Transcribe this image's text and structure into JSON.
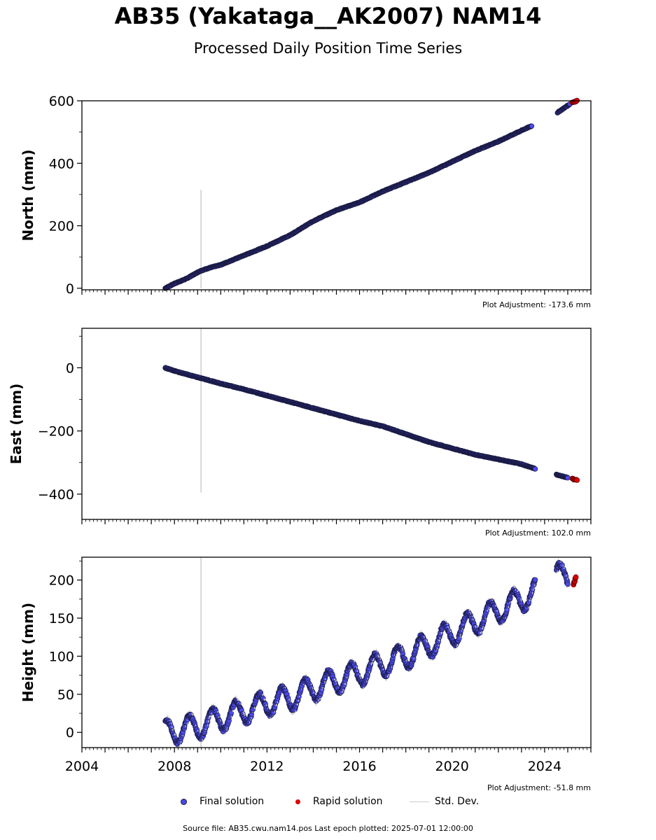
{
  "title": "AB35 (Yakataga__AK2007) NAM14",
  "subtitle": "Processed Daily Position Time Series",
  "legend": {
    "final": "Final solution",
    "rapid": "Rapid solution",
    "std": "Std. Dev."
  },
  "source": "Source file: AB35.cwu.nam14.pos  Last epoch plotted: 2025-07-01 12:00:00",
  "colors": {
    "final": "#4a4ae8",
    "final_edge": "#1a1a40",
    "rapid": "#dd0000",
    "std": "#cccccc"
  },
  "chart_data": [
    {
      "type": "scatter",
      "ylabel": "North (mm)",
      "adjustment": "Plot Adjustment: -173.6 mm",
      "xlim": [
        2004.0,
        2026.0
      ],
      "ylim": [
        -5,
        600
      ],
      "yticks": [
        0,
        200,
        400,
        600
      ],
      "xticks": [],
      "gap": [
        2023.45,
        2024.55
      ],
      "outlier": {
        "x": 2009.15,
        "y_low": 0,
        "y_high": 315
      },
      "final": {
        "x": [
          2007.6,
          2008.0,
          2008.5,
          2009.1,
          2009.5,
          2010.0,
          2011.0,
          2012.0,
          2013.0,
          2014.0,
          2015.0,
          2016.0,
          2017.0,
          2018.0,
          2019.0,
          2020.0,
          2021.0,
          2022.0,
          2023.0,
          2023.45,
          2024.55,
          2025.1
        ],
        "y": [
          0,
          15,
          30,
          55,
          65,
          75,
          105,
          135,
          170,
          215,
          250,
          275,
          310,
          340,
          370,
          405,
          440,
          470,
          505,
          520,
          562,
          590
        ]
      },
      "rapid": {
        "x": [
          2025.2,
          2025.4
        ],
        "y": [
          595,
          600
        ]
      }
    },
    {
      "type": "scatter",
      "ylabel": "East (mm)",
      "adjustment": "Plot Adjustment: 102.0 mm",
      "xlim": [
        2004.0,
        2026.0
      ],
      "ylim": [
        -480,
        125
      ],
      "yticks": [
        -400,
        -200,
        0
      ],
      "ytick_labels": [
        "−400",
        "−200",
        "0"
      ],
      "xticks": [],
      "gap": [
        2023.6,
        2024.5
      ],
      "outlier": {
        "x": 2009.15,
        "y_low": -395,
        "y_high": 125
      },
      "final": {
        "x": [
          2007.6,
          2008.0,
          2009.0,
          2010.0,
          2011.0,
          2012.0,
          2013.0,
          2014.0,
          2015.0,
          2016.0,
          2017.0,
          2018.0,
          2019.0,
          2020.0,
          2021.0,
          2022.0,
          2023.0,
          2023.6,
          2024.5,
          2025.0
        ],
        "y": [
          0,
          -10,
          -30,
          -50,
          -68,
          -88,
          -108,
          -128,
          -148,
          -168,
          -185,
          -210,
          -235,
          -255,
          -275,
          -290,
          -305,
          -320,
          -338,
          -348
        ]
      },
      "rapid": {
        "x": [
          2025.2,
          2025.4
        ],
        "y": [
          -352,
          -355
        ]
      }
    },
    {
      "type": "scatter",
      "ylabel": "Height (mm)",
      "adjustment": "Plot Adjustment: -51.8 mm",
      "xlim": [
        2004.0,
        2026.0
      ],
      "ylim": [
        -20,
        230
      ],
      "yticks": [
        0,
        50,
        100,
        150,
        200
      ],
      "xticks": [
        2004,
        2008,
        2012,
        2016,
        2020,
        2024
      ],
      "gap": [
        2023.6,
        2024.5
      ],
      "outlier": {
        "x": 2009.15,
        "y_low": -20,
        "y_high": 230
      },
      "seasonal_amplitude": 16,
      "final": {
        "x": [
          2007.6,
          2009.0,
          2010.0,
          2011.0,
          2012.0,
          2013.0,
          2014.0,
          2015.0,
          2016.0,
          2017.0,
          2018.0,
          2019.0,
          2020.0,
          2021.0,
          2022.0,
          2023.0,
          2023.6,
          2024.5,
          2025.0
        ],
        "y": [
          0,
          8,
          18,
          28,
          38,
          45,
          58,
          68,
          78,
          90,
          100,
          115,
          130,
          145,
          160,
          175,
          185,
          205,
          205
        ]
      },
      "rapid": {
        "x": [
          2025.25,
          2025.35
        ],
        "y": [
          195,
          203
        ]
      }
    }
  ]
}
